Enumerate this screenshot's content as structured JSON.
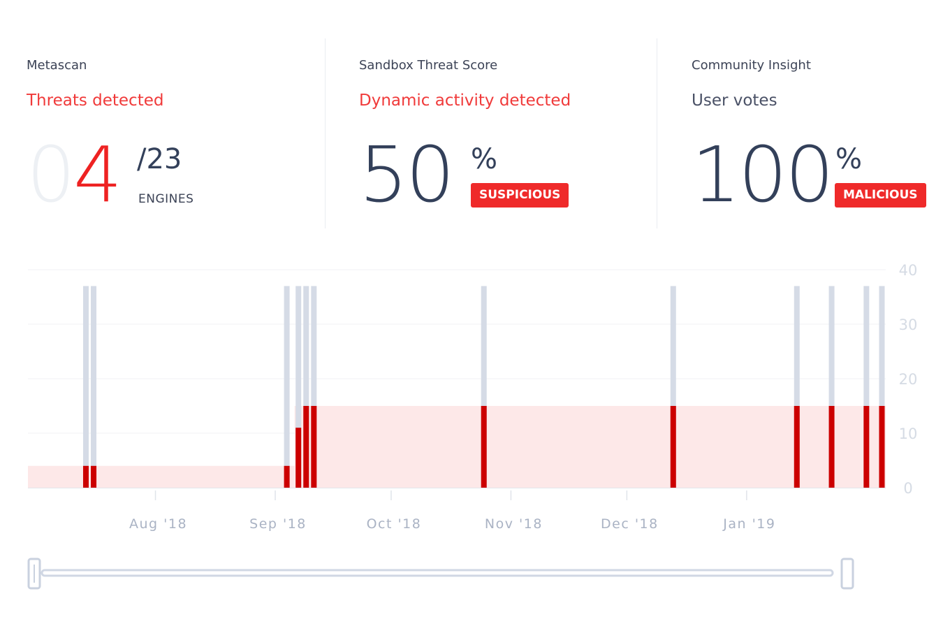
{
  "metascan": {
    "title": "Metascan",
    "status": "Threats detected",
    "count_prefix": "0",
    "count_value": "4",
    "total": "/23",
    "total_label": "ENGINES"
  },
  "sandbox": {
    "title": "Sandbox Threat Score",
    "status": "Dynamic activity detected",
    "score": "50",
    "unit": "%",
    "badge": "SUSPICIOUS"
  },
  "community": {
    "title": "Community Insight",
    "status": "User votes",
    "score": "100",
    "unit": "%",
    "badge": "MALICIOUS"
  },
  "colors": {
    "threat_red": "#cc0000",
    "total_bar": "#d5dbe6",
    "band": "#fde8e8",
    "accent_red": "#ef2a2a"
  },
  "chart_data": {
    "type": "bar",
    "y_ticks": [
      "40",
      "30",
      "20",
      "10",
      "0"
    ],
    "ylim": [
      0,
      40
    ],
    "x_ticks": [
      "Aug '18",
      "Sep '18",
      "Oct '18",
      "Nov '18",
      "Dec '18",
      "Jan '19"
    ],
    "series": [
      {
        "name": "",
        "date": "2018-07-14",
        "total": 37,
        "detected": 4
      },
      {
        "name": "",
        "date": "2018-07-16",
        "total": 37,
        "detected": 4
      },
      {
        "name": "",
        "date": "2018-09-04",
        "total": 37,
        "detected": 4
      },
      {
        "name": "",
        "date": "2018-09-07",
        "total": 37,
        "detected": 11
      },
      {
        "name": "",
        "date": "2018-09-09",
        "total": 37,
        "detected": 15
      },
      {
        "name": "",
        "date": "2018-09-11",
        "total": 37,
        "detected": 15
      },
      {
        "name": "",
        "date": "2018-10-25",
        "total": 37,
        "detected": 15
      },
      {
        "name": "",
        "date": "2018-12-13",
        "total": 37,
        "detected": 15
      },
      {
        "name": "",
        "date": "2019-01-14",
        "total": 37,
        "detected": 15
      },
      {
        "name": "",
        "date": "2019-01-23",
        "total": 37,
        "detected": 15
      },
      {
        "name": "",
        "date": "2019-02-01",
        "total": 37,
        "detected": 15
      },
      {
        "name": "",
        "date": "2019-02-05",
        "total": 37,
        "detected": 15
      }
    ],
    "bands": [
      {
        "from": "2018-06-29",
        "to": "2018-09-06",
        "value": 4
      },
      {
        "from": "2018-09-06",
        "to": "2019-02-06",
        "value": 15
      }
    ],
    "x_range": [
      "2018-06-29",
      "2019-02-06"
    ],
    "grid": true
  }
}
